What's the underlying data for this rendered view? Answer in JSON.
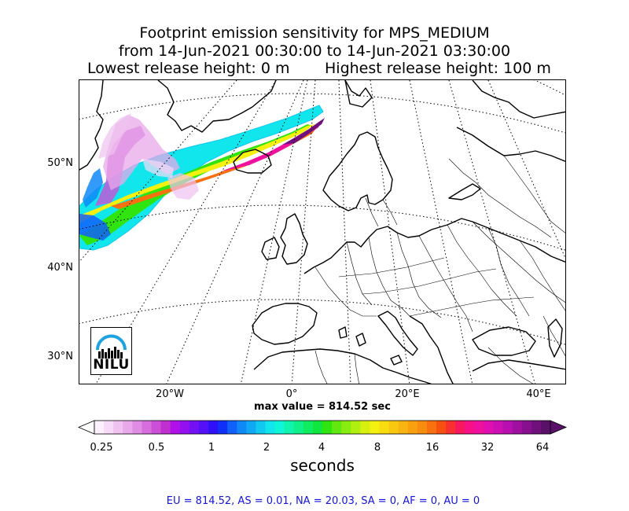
{
  "title": {
    "line1": "Footprint emission sensitivity for MPS_MEDIUM",
    "line2": "from 14-Jun-2021 00:30:00 to 14-Jun-2021 03:30:00",
    "lowest": "Lowest release height: 0 m",
    "highest": "Highest release height: 100 m"
  },
  "map": {
    "lat_labels": [
      "50°N",
      "40°N",
      "30°N"
    ],
    "lon_labels": [
      "20°W",
      "0°",
      "20°E",
      "40°E"
    ],
    "logo_text": "NILU",
    "logo_color": "#1fa3e0"
  },
  "max_value": "max value = 814.52 sec",
  "colorbar": {
    "ticks": [
      "0.25",
      "0.5",
      "1",
      "2",
      "4",
      "8",
      "16",
      "32",
      "64"
    ],
    "unit": "seconds",
    "colors": [
      "#fdf0fd",
      "#f6daf7",
      "#efc2f0",
      "#e8a8ea",
      "#e08ce4",
      "#d66fdd",
      "#cc50d7",
      "#c02fcf",
      "#b210e8",
      "#9410f0",
      "#7410f4",
      "#5410f6",
      "#3010f8",
      "#1030fa",
      "#1060fa",
      "#1088f8",
      "#10a8f4",
      "#10c8f0",
      "#10e6ec",
      "#10f4d8",
      "#10f4b0",
      "#10f088",
      "#10ec60",
      "#10e640",
      "#30e410",
      "#60e810",
      "#88ec10",
      "#b0f010",
      "#d8f010",
      "#f4f010",
      "#f8dc10",
      "#f8c810",
      "#f8b410",
      "#f8a010",
      "#f88c10",
      "#f87010",
      "#f85010",
      "#f83030",
      "#f81860",
      "#f81088",
      "#f010a0",
      "#e010b0",
      "#cc10b4",
      "#b810b0",
      "#a010a0",
      "#881090",
      "#70107c",
      "#5a1068"
    ]
  },
  "stats": "EU = 814.52,  AS = 0.01,  NA = 20.03,  SA = 0,  AF = 0,  AU = 0"
}
